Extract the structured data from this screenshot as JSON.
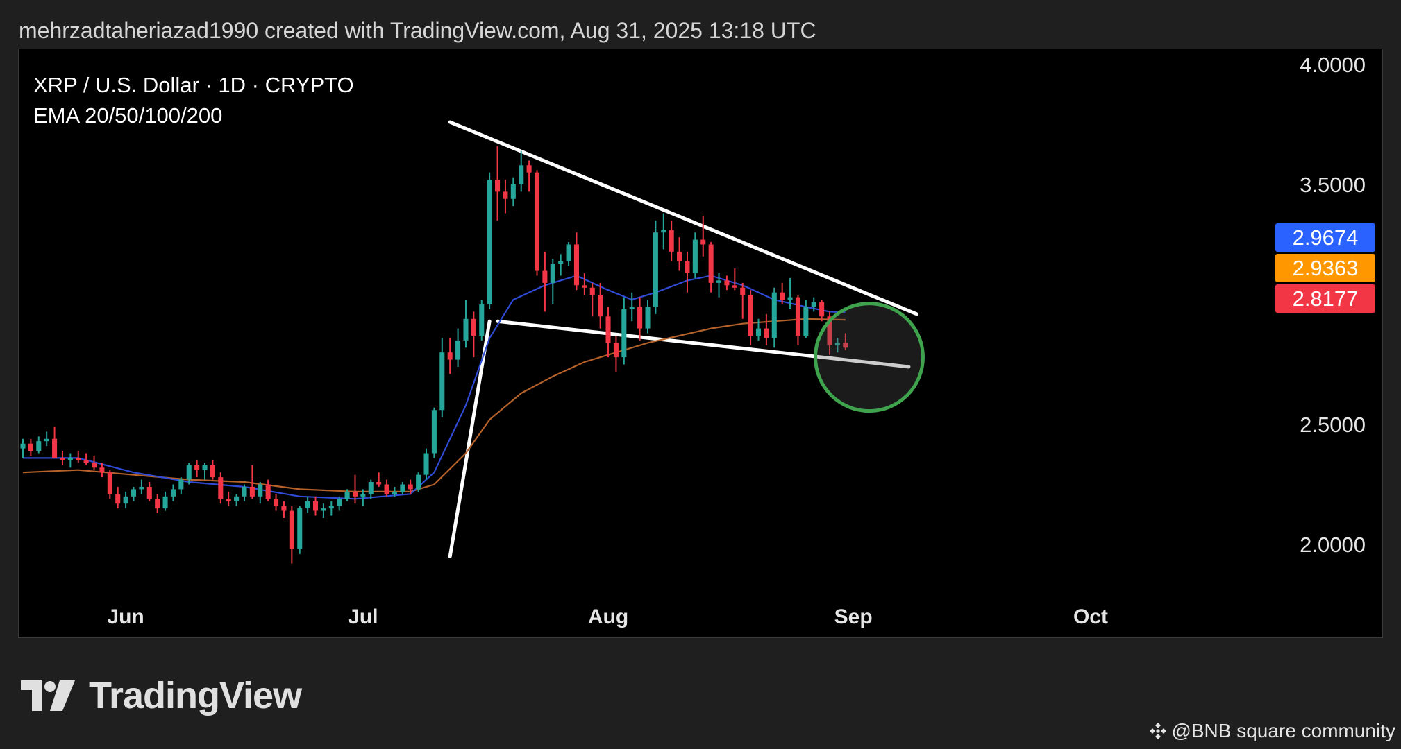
{
  "header": {
    "attribution": "mehrzadtaheriazad1990 created with TradingView.com, Aug 31, 2025 13:18 UTC"
  },
  "chart_data": {
    "type": "candlestick",
    "title": "XRP / U.S. Dollar · 1D · CRYPTO",
    "indicator": "EMA 20/50/100/200",
    "y_ticks": [
      "4.0000",
      "3.5000",
      "2.5000",
      "2.0000"
    ],
    "y_tick_values": [
      4.0,
      3.5,
      2.5,
      2.0
    ],
    "x_ticks": [
      "Jun",
      "Jul",
      "Aug",
      "Sep",
      "Oct"
    ],
    "x_tick_dates": [
      "2025-06-01",
      "2025-07-01",
      "2025-08-01",
      "2025-09-01",
      "2025-10-01"
    ],
    "x_range": [
      "2025-05-19",
      "2025-10-24"
    ],
    "ylim": [
      1.82,
      4.05
    ],
    "price_labels": [
      {
        "value": "2.9674",
        "color": "#2962ff"
      },
      {
        "value": "2.9363",
        "color": "#ff9800"
      },
      {
        "value": "2.8177",
        "color": "#f23645"
      }
    ],
    "colors": {
      "up": "#26a69a",
      "down": "#f23645",
      "ema_fast": "#2f4bd6",
      "ema_slow": "#b5612a",
      "circle": "#3fa34d",
      "trendline": "#ffffff"
    },
    "candles": [
      [
        "2025-05-19",
        2.4,
        2.44,
        2.36,
        2.42
      ],
      [
        "2025-05-20",
        2.42,
        2.44,
        2.37,
        2.39
      ],
      [
        "2025-05-21",
        2.39,
        2.45,
        2.38,
        2.43
      ],
      [
        "2025-05-22",
        2.43,
        2.47,
        2.41,
        2.44
      ],
      [
        "2025-05-23",
        2.44,
        2.49,
        2.36,
        2.36
      ],
      [
        "2025-05-24",
        2.36,
        2.39,
        2.33,
        2.35
      ],
      [
        "2025-05-25",
        2.35,
        2.38,
        2.32,
        2.36
      ],
      [
        "2025-05-26",
        2.36,
        2.39,
        2.34,
        2.35
      ],
      [
        "2025-05-27",
        2.35,
        2.38,
        2.33,
        2.34
      ],
      [
        "2025-05-28",
        2.34,
        2.37,
        2.31,
        2.32
      ],
      [
        "2025-05-29",
        2.32,
        2.34,
        2.28,
        2.3
      ],
      [
        "2025-05-30",
        2.3,
        2.31,
        2.19,
        2.21
      ],
      [
        "2025-05-31",
        2.21,
        2.24,
        2.15,
        2.17
      ],
      [
        "2025-06-01",
        2.17,
        2.22,
        2.15,
        2.2
      ],
      [
        "2025-06-02",
        2.2,
        2.24,
        2.18,
        2.23
      ],
      [
        "2025-06-03",
        2.23,
        2.27,
        2.21,
        2.24
      ],
      [
        "2025-06-04",
        2.24,
        2.26,
        2.18,
        2.19
      ],
      [
        "2025-06-05",
        2.19,
        2.21,
        2.13,
        2.15
      ],
      [
        "2025-06-06",
        2.15,
        2.22,
        2.14,
        2.2
      ],
      [
        "2025-06-07",
        2.2,
        2.25,
        2.18,
        2.23
      ],
      [
        "2025-06-08",
        2.23,
        2.28,
        2.21,
        2.27
      ],
      [
        "2025-06-09",
        2.27,
        2.34,
        2.25,
        2.33
      ],
      [
        "2025-06-10",
        2.33,
        2.35,
        2.28,
        2.31
      ],
      [
        "2025-06-11",
        2.31,
        2.34,
        2.27,
        2.33
      ],
      [
        "2025-06-12",
        2.33,
        2.35,
        2.27,
        2.28
      ],
      [
        "2025-06-13",
        2.28,
        2.3,
        2.17,
        2.19
      ],
      [
        "2025-06-14",
        2.19,
        2.22,
        2.16,
        2.18
      ],
      [
        "2025-06-15",
        2.18,
        2.21,
        2.16,
        2.2
      ],
      [
        "2025-06-16",
        2.2,
        2.25,
        2.18,
        2.24
      ],
      [
        "2025-06-17",
        2.24,
        2.33,
        2.19,
        2.2
      ],
      [
        "2025-06-18",
        2.2,
        2.26,
        2.17,
        2.25
      ],
      [
        "2025-06-19",
        2.25,
        2.27,
        2.18,
        2.19
      ],
      [
        "2025-06-20",
        2.19,
        2.21,
        2.14,
        2.16
      ],
      [
        "2025-06-21",
        2.16,
        2.18,
        2.11,
        2.14
      ],
      [
        "2025-06-22",
        2.14,
        2.16,
        1.92,
        1.98
      ],
      [
        "2025-06-23",
        1.98,
        2.16,
        1.96,
        2.15
      ],
      [
        "2025-06-24",
        2.15,
        2.2,
        2.13,
        2.18
      ],
      [
        "2025-06-25",
        2.18,
        2.2,
        2.12,
        2.14
      ],
      [
        "2025-06-26",
        2.14,
        2.17,
        2.11,
        2.15
      ],
      [
        "2025-06-27",
        2.15,
        2.18,
        2.12,
        2.16
      ],
      [
        "2025-06-28",
        2.16,
        2.2,
        2.14,
        2.19
      ],
      [
        "2025-06-29",
        2.19,
        2.23,
        2.18,
        2.22
      ],
      [
        "2025-06-30",
        2.22,
        2.29,
        2.17,
        2.2
      ],
      [
        "2025-07-01",
        2.2,
        2.23,
        2.16,
        2.21
      ],
      [
        "2025-07-02",
        2.21,
        2.27,
        2.19,
        2.26
      ],
      [
        "2025-07-03",
        2.26,
        2.3,
        2.24,
        2.25
      ],
      [
        "2025-07-04",
        2.25,
        2.27,
        2.2,
        2.21
      ],
      [
        "2025-07-05",
        2.21,
        2.24,
        2.2,
        2.22
      ],
      [
        "2025-07-06",
        2.22,
        2.26,
        2.21,
        2.25
      ],
      [
        "2025-07-07",
        2.25,
        2.27,
        2.21,
        2.23
      ],
      [
        "2025-07-08",
        2.23,
        2.3,
        2.22,
        2.29
      ],
      [
        "2025-07-09",
        2.29,
        2.4,
        2.27,
        2.38
      ],
      [
        "2025-07-10",
        2.38,
        2.57,
        2.36,
        2.56
      ],
      [
        "2025-07-11",
        2.56,
        2.86,
        2.53,
        2.8
      ],
      [
        "2025-07-12",
        2.8,
        2.86,
        2.71,
        2.77
      ],
      [
        "2025-07-13",
        2.77,
        2.9,
        2.74,
        2.85
      ],
      [
        "2025-07-14",
        2.85,
        3.02,
        2.82,
        2.94
      ],
      [
        "2025-07-15",
        2.94,
        2.97,
        2.78,
        2.87
      ],
      [
        "2025-07-16",
        2.87,
        3.02,
        2.85,
        3.0
      ],
      [
        "2025-07-17",
        3.0,
        3.55,
        2.98,
        3.52
      ],
      [
        "2025-07-18",
        3.52,
        3.66,
        3.35,
        3.47
      ],
      [
        "2025-07-19",
        3.47,
        3.52,
        3.38,
        3.44
      ],
      [
        "2025-07-20",
        3.44,
        3.53,
        3.41,
        3.5
      ],
      [
        "2025-07-21",
        3.5,
        3.64,
        3.47,
        3.58
      ],
      [
        "2025-07-22",
        3.58,
        3.6,
        3.47,
        3.55
      ],
      [
        "2025-07-23",
        3.55,
        3.56,
        3.12,
        3.14
      ],
      [
        "2025-07-24",
        3.14,
        3.22,
        2.97,
        3.09
      ],
      [
        "2025-07-25",
        3.09,
        3.19,
        3.0,
        3.17
      ],
      [
        "2025-07-26",
        3.17,
        3.21,
        3.12,
        3.18
      ],
      [
        "2025-07-27",
        3.18,
        3.26,
        3.16,
        3.25
      ],
      [
        "2025-07-28",
        3.25,
        3.3,
        3.06,
        3.08
      ],
      [
        "2025-07-29",
        3.08,
        3.13,
        3.04,
        3.07
      ],
      [
        "2025-07-30",
        3.07,
        3.09,
        2.95,
        3.04
      ],
      [
        "2025-07-31",
        3.04,
        3.09,
        2.9,
        2.95
      ],
      [
        "2025-08-01",
        2.95,
        2.99,
        2.78,
        2.84
      ],
      [
        "2025-08-02",
        2.84,
        2.87,
        2.72,
        2.78
      ],
      [
        "2025-08-03",
        2.78,
        3.03,
        2.75,
        2.98
      ],
      [
        "2025-08-04",
        2.98,
        3.05,
        2.93,
        2.99
      ],
      [
        "2025-08-05",
        2.99,
        3.03,
        2.85,
        2.9
      ],
      [
        "2025-08-06",
        2.9,
        3.02,
        2.88,
        2.99
      ],
      [
        "2025-08-07",
        2.99,
        3.35,
        2.96,
        3.3
      ],
      [
        "2025-08-08",
        3.3,
        3.38,
        3.23,
        3.31
      ],
      [
        "2025-08-09",
        3.31,
        3.35,
        3.18,
        3.22
      ],
      [
        "2025-08-10",
        3.22,
        3.28,
        3.14,
        3.18
      ],
      [
        "2025-08-11",
        3.18,
        3.22,
        3.05,
        3.13
      ],
      [
        "2025-08-12",
        3.13,
        3.3,
        3.11,
        3.27
      ],
      [
        "2025-08-13",
        3.27,
        3.37,
        3.2,
        3.25
      ],
      [
        "2025-08-14",
        3.25,
        3.26,
        3.05,
        3.09
      ],
      [
        "2025-08-15",
        3.09,
        3.13,
        3.03,
        3.1
      ],
      [
        "2025-08-16",
        3.1,
        3.12,
        3.06,
        3.08
      ],
      [
        "2025-08-17",
        3.08,
        3.15,
        3.06,
        3.07
      ],
      [
        "2025-08-18",
        3.07,
        3.09,
        2.94,
        3.04
      ],
      [
        "2025-08-19",
        3.04,
        3.06,
        2.83,
        2.87
      ],
      [
        "2025-08-20",
        2.87,
        2.94,
        2.85,
        2.9
      ],
      [
        "2025-08-21",
        2.9,
        2.96,
        2.83,
        2.86
      ],
      [
        "2025-08-22",
        2.86,
        3.07,
        2.82,
        3.05
      ],
      [
        "2025-08-23",
        3.05,
        3.09,
        3.0,
        3.02
      ],
      [
        "2025-08-24",
        3.02,
        3.11,
        2.98,
        3.03
      ],
      [
        "2025-08-25",
        3.03,
        3.04,
        2.83,
        2.87
      ],
      [
        "2025-08-26",
        2.87,
        3.02,
        2.86,
        2.99
      ],
      [
        "2025-08-27",
        2.99,
        3.03,
        2.97,
        3.01
      ],
      [
        "2025-08-28",
        3.01,
        3.02,
        2.93,
        2.95
      ],
      [
        "2025-08-29",
        2.95,
        2.97,
        2.79,
        2.83
      ],
      [
        "2025-08-30",
        2.83,
        2.86,
        2.8,
        2.84
      ],
      [
        "2025-08-31",
        2.84,
        2.88,
        2.81,
        2.82
      ]
    ],
    "ema_fast": [
      [
        "2025-05-19",
        2.36
      ],
      [
        "2025-05-26",
        2.36
      ],
      [
        "2025-06-02",
        2.3
      ],
      [
        "2025-06-09",
        2.26
      ],
      [
        "2025-06-16",
        2.24
      ],
      [
        "2025-06-23",
        2.2
      ],
      [
        "2025-06-30",
        2.19
      ],
      [
        "2025-07-07",
        2.21
      ],
      [
        "2025-07-10",
        2.3
      ],
      [
        "2025-07-14",
        2.58
      ],
      [
        "2025-07-17",
        2.86
      ],
      [
        "2025-07-20",
        3.02
      ],
      [
        "2025-07-24",
        3.08
      ],
      [
        "2025-07-28",
        3.12
      ],
      [
        "2025-08-01",
        3.06
      ],
      [
        "2025-08-04",
        3.02
      ],
      [
        "2025-08-07",
        3.05
      ],
      [
        "2025-08-11",
        3.1
      ],
      [
        "2025-08-14",
        3.12
      ],
      [
        "2025-08-18",
        3.08
      ],
      [
        "2025-08-22",
        3.02
      ],
      [
        "2025-08-26",
        2.99
      ],
      [
        "2025-08-29",
        2.97
      ],
      [
        "2025-08-31",
        2.967
      ]
    ],
    "ema_slow": [
      [
        "2025-05-19",
        2.3
      ],
      [
        "2025-05-26",
        2.31
      ],
      [
        "2025-06-02",
        2.29
      ],
      [
        "2025-06-09",
        2.27
      ],
      [
        "2025-06-16",
        2.26
      ],
      [
        "2025-06-23",
        2.23
      ],
      [
        "2025-06-30",
        2.22
      ],
      [
        "2025-07-07",
        2.22
      ],
      [
        "2025-07-10",
        2.25
      ],
      [
        "2025-07-14",
        2.38
      ],
      [
        "2025-07-17",
        2.52
      ],
      [
        "2025-07-21",
        2.63
      ],
      [
        "2025-07-25",
        2.7
      ],
      [
        "2025-07-29",
        2.76
      ],
      [
        "2025-08-02",
        2.8
      ],
      [
        "2025-08-06",
        2.84
      ],
      [
        "2025-08-10",
        2.87
      ],
      [
        "2025-08-14",
        2.9
      ],
      [
        "2025-08-18",
        2.92
      ],
      [
        "2025-08-22",
        2.93
      ],
      [
        "2025-08-26",
        2.94
      ],
      [
        "2025-08-31",
        2.936
      ]
    ],
    "trendlines": [
      {
        "from": [
          "2025-07-12",
          3.76
        ],
        "to": [
          "2025-09-09",
          2.96
        ]
      },
      {
        "from": [
          "2025-07-18",
          2.93
        ],
        "to": [
          "2025-09-08",
          2.74
        ]
      },
      {
        "from": [
          "2025-07-12",
          1.95
        ],
        "to": [
          "2025-07-17",
          2.93
        ]
      }
    ],
    "circle": {
      "center": [
        "2025-09-03",
        2.78
      ],
      "radius_days": 4.0
    }
  },
  "branding": {
    "name": "TradingView"
  },
  "watermark": {
    "text": "@BNB square community"
  }
}
